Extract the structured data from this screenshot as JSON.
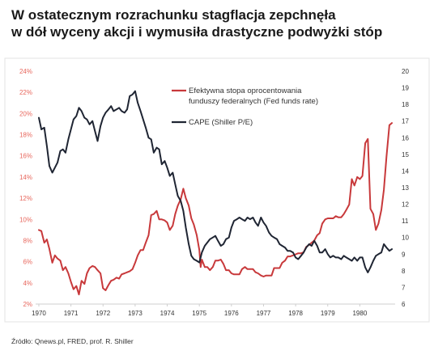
{
  "title_line1": "W ostatecznym rozrachunku stagflacja zepchnęła",
  "title_line2": "w dół wyceny akcji i wymusiła drastyczne podwyżki stóp",
  "source": "Źródło: Qnews.pl, FRED, prof. R. Shiller",
  "chart_data": {
    "type": "line",
    "title": "",
    "xlabel": "",
    "x_ticks": [
      "1970",
      "1971",
      "1972",
      "1973",
      "1974",
      "1975",
      "1976",
      "1977",
      "1978",
      "1979",
      "1980"
    ],
    "y_left": {
      "ticks": [
        "2%",
        "4%",
        "6%",
        "8%",
        "10%",
        "12%",
        "14%",
        "16%",
        "18%",
        "20%",
        "22%",
        "24%"
      ],
      "range": [
        2,
        24
      ],
      "color": "#e8675d"
    },
    "y_right": {
      "ticks": [
        "6",
        "7",
        "8",
        "9",
        "10",
        "11",
        "12",
        "13",
        "14",
        "15",
        "16",
        "17",
        "18",
        "19",
        "20"
      ],
      "range": [
        6,
        20
      ],
      "color": "#333333"
    },
    "x_range": [
      1969.9,
      1981.1
    ],
    "legend_position": "top-right",
    "series": [
      {
        "name": "Efektywna stopa oprocentowania funduszy federalnych (Fed funds rate)",
        "axis": "left",
        "color": "#c8393b",
        "points": [
          [
            1970.0,
            9.0
          ],
          [
            1970.08,
            8.9
          ],
          [
            1970.17,
            7.8
          ],
          [
            1970.25,
            8.1
          ],
          [
            1970.33,
            7.2
          ],
          [
            1970.42,
            5.9
          ],
          [
            1970.5,
            6.6
          ],
          [
            1970.58,
            6.3
          ],
          [
            1970.67,
            6.1
          ],
          [
            1970.75,
            5.2
          ],
          [
            1970.83,
            5.5
          ],
          [
            1970.92,
            4.9
          ],
          [
            1971.0,
            4.1
          ],
          [
            1971.08,
            3.4
          ],
          [
            1971.17,
            3.7
          ],
          [
            1971.25,
            2.9
          ],
          [
            1971.33,
            4.2
          ],
          [
            1971.42,
            3.9
          ],
          [
            1971.5,
            4.9
          ],
          [
            1971.58,
            5.4
          ],
          [
            1971.67,
            5.6
          ],
          [
            1971.75,
            5.5
          ],
          [
            1971.83,
            5.2
          ],
          [
            1971.92,
            4.9
          ],
          [
            1972.0,
            3.5
          ],
          [
            1972.08,
            3.3
          ],
          [
            1972.17,
            3.8
          ],
          [
            1972.25,
            4.2
          ],
          [
            1972.33,
            4.3
          ],
          [
            1972.42,
            4.5
          ],
          [
            1972.5,
            4.4
          ],
          [
            1972.58,
            4.8
          ],
          [
            1972.67,
            4.9
          ],
          [
            1972.75,
            5.0
          ],
          [
            1972.83,
            5.1
          ],
          [
            1972.92,
            5.3
          ],
          [
            1973.0,
            5.9
          ],
          [
            1973.08,
            6.6
          ],
          [
            1973.17,
            7.1
          ],
          [
            1973.25,
            7.1
          ],
          [
            1973.33,
            7.8
          ],
          [
            1973.42,
            8.5
          ],
          [
            1973.5,
            10.4
          ],
          [
            1973.58,
            10.5
          ],
          [
            1973.67,
            10.8
          ],
          [
            1973.75,
            10.0
          ],
          [
            1973.83,
            10.0
          ],
          [
            1973.92,
            9.9
          ],
          [
            1974.0,
            9.7
          ],
          [
            1974.08,
            9.0
          ],
          [
            1974.17,
            9.4
          ],
          [
            1974.25,
            10.5
          ],
          [
            1974.33,
            11.3
          ],
          [
            1974.42,
            11.9
          ],
          [
            1974.5,
            12.9
          ],
          [
            1974.58,
            12.0
          ],
          [
            1974.67,
            11.3
          ],
          [
            1974.75,
            10.1
          ],
          [
            1974.83,
            9.5
          ],
          [
            1974.92,
            8.5
          ],
          [
            1975.0,
            7.1
          ],
          [
            1975.04,
            5.5
          ],
          [
            1975.08,
            6.2
          ],
          [
            1975.17,
            5.5
          ],
          [
            1975.25,
            5.5
          ],
          [
            1975.33,
            5.2
          ],
          [
            1975.42,
            5.5
          ],
          [
            1975.5,
            6.1
          ],
          [
            1975.58,
            6.1
          ],
          [
            1975.67,
            6.2
          ],
          [
            1975.75,
            5.8
          ],
          [
            1975.83,
            5.2
          ],
          [
            1975.92,
            5.2
          ],
          [
            1976.0,
            4.9
          ],
          [
            1976.08,
            4.8
          ],
          [
            1976.17,
            4.8
          ],
          [
            1976.25,
            4.8
          ],
          [
            1976.33,
            5.3
          ],
          [
            1976.42,
            5.5
          ],
          [
            1976.5,
            5.3
          ],
          [
            1976.58,
            5.3
          ],
          [
            1976.67,
            5.3
          ],
          [
            1976.75,
            5.0
          ],
          [
            1976.83,
            4.9
          ],
          [
            1976.92,
            4.7
          ],
          [
            1977.0,
            4.6
          ],
          [
            1977.08,
            4.7
          ],
          [
            1977.17,
            4.7
          ],
          [
            1977.25,
            4.7
          ],
          [
            1977.33,
            5.4
          ],
          [
            1977.42,
            5.4
          ],
          [
            1977.5,
            5.4
          ],
          [
            1977.58,
            5.9
          ],
          [
            1977.67,
            6.1
          ],
          [
            1977.75,
            6.5
          ],
          [
            1977.83,
            6.5
          ],
          [
            1977.92,
            6.6
          ],
          [
            1978.0,
            6.7
          ],
          [
            1978.08,
            6.8
          ],
          [
            1978.17,
            6.8
          ],
          [
            1978.25,
            6.9
          ],
          [
            1978.33,
            7.4
          ],
          [
            1978.42,
            7.6
          ],
          [
            1978.5,
            7.8
          ],
          [
            1978.58,
            8.0
          ],
          [
            1978.67,
            8.5
          ],
          [
            1978.75,
            8.7
          ],
          [
            1978.83,
            9.6
          ],
          [
            1978.92,
            10.0
          ],
          [
            1979.0,
            10.1
          ],
          [
            1979.08,
            10.1
          ],
          [
            1979.17,
            10.1
          ],
          [
            1979.25,
            10.3
          ],
          [
            1979.33,
            10.2
          ],
          [
            1979.42,
            10.2
          ],
          [
            1979.5,
            10.5
          ],
          [
            1979.58,
            10.9
          ],
          [
            1979.67,
            11.4
          ],
          [
            1979.75,
            13.8
          ],
          [
            1979.83,
            13.2
          ],
          [
            1979.92,
            14.0
          ],
          [
            1980.0,
            13.8
          ],
          [
            1980.08,
            14.1
          ],
          [
            1980.17,
            17.2
          ],
          [
            1980.25,
            17.6
          ],
          [
            1980.33,
            11.0
          ],
          [
            1980.42,
            10.5
          ],
          [
            1980.5,
            9.0
          ],
          [
            1980.58,
            9.6
          ],
          [
            1980.67,
            10.9
          ],
          [
            1980.75,
            12.8
          ],
          [
            1980.83,
            15.9
          ],
          [
            1980.92,
            18.9
          ],
          [
            1981.0,
            19.1
          ]
        ]
      },
      {
        "name": "CAPE (Shiller P/E)",
        "axis": "right",
        "color": "#1f2533",
        "points": [
          [
            1970.0,
            17.2
          ],
          [
            1970.08,
            16.5
          ],
          [
            1970.17,
            16.6
          ],
          [
            1970.25,
            15.5
          ],
          [
            1970.33,
            14.3
          ],
          [
            1970.42,
            13.9
          ],
          [
            1970.5,
            14.2
          ],
          [
            1970.58,
            14.5
          ],
          [
            1970.67,
            15.2
          ],
          [
            1970.75,
            15.3
          ],
          [
            1970.83,
            15.1
          ],
          [
            1970.92,
            15.9
          ],
          [
            1971.0,
            16.5
          ],
          [
            1971.08,
            17.1
          ],
          [
            1971.17,
            17.3
          ],
          [
            1971.25,
            17.8
          ],
          [
            1971.33,
            17.6
          ],
          [
            1971.42,
            17.2
          ],
          [
            1971.5,
            17.1
          ],
          [
            1971.58,
            16.8
          ],
          [
            1971.67,
            17.0
          ],
          [
            1971.75,
            16.4
          ],
          [
            1971.83,
            15.8
          ],
          [
            1971.92,
            16.7
          ],
          [
            1972.0,
            17.2
          ],
          [
            1972.08,
            17.5
          ],
          [
            1972.17,
            17.7
          ],
          [
            1972.25,
            17.9
          ],
          [
            1972.33,
            17.6
          ],
          [
            1972.42,
            17.7
          ],
          [
            1972.5,
            17.8
          ],
          [
            1972.58,
            17.6
          ],
          [
            1972.67,
            17.5
          ],
          [
            1972.75,
            17.7
          ],
          [
            1972.83,
            18.5
          ],
          [
            1972.92,
            18.6
          ],
          [
            1973.0,
            18.8
          ],
          [
            1973.08,
            18.1
          ],
          [
            1973.17,
            17.6
          ],
          [
            1973.25,
            17.1
          ],
          [
            1973.33,
            16.6
          ],
          [
            1973.42,
            16.0
          ],
          [
            1973.5,
            15.9
          ],
          [
            1973.58,
            15.1
          ],
          [
            1973.67,
            15.4
          ],
          [
            1973.75,
            15.3
          ],
          [
            1973.83,
            14.4
          ],
          [
            1973.92,
            14.6
          ],
          [
            1974.0,
            14.2
          ],
          [
            1974.08,
            13.7
          ],
          [
            1974.17,
            13.9
          ],
          [
            1974.25,
            13.2
          ],
          [
            1974.33,
            12.5
          ],
          [
            1974.42,
            12.2
          ],
          [
            1974.5,
            11.6
          ],
          [
            1974.58,
            10.6
          ],
          [
            1974.67,
            9.6
          ],
          [
            1974.75,
            8.9
          ],
          [
            1974.83,
            8.7
          ],
          [
            1974.92,
            8.6
          ],
          [
            1975.0,
            8.5
          ],
          [
            1975.08,
            9.1
          ],
          [
            1975.17,
            9.5
          ],
          [
            1975.25,
            9.7
          ],
          [
            1975.33,
            9.9
          ],
          [
            1975.42,
            10.0
          ],
          [
            1975.5,
            10.1
          ],
          [
            1975.58,
            9.8
          ],
          [
            1975.67,
            9.5
          ],
          [
            1975.75,
            9.6
          ],
          [
            1975.83,
            9.9
          ],
          [
            1975.92,
            10.0
          ],
          [
            1976.0,
            10.6
          ],
          [
            1976.08,
            11.0
          ],
          [
            1976.17,
            11.1
          ],
          [
            1976.25,
            11.2
          ],
          [
            1976.33,
            11.1
          ],
          [
            1976.42,
            11.0
          ],
          [
            1976.5,
            11.2
          ],
          [
            1976.58,
            11.1
          ],
          [
            1976.67,
            11.2
          ],
          [
            1976.75,
            10.9
          ],
          [
            1976.83,
            10.7
          ],
          [
            1976.92,
            11.2
          ],
          [
            1977.0,
            10.9
          ],
          [
            1977.08,
            10.7
          ],
          [
            1977.17,
            10.3
          ],
          [
            1977.25,
            10.1
          ],
          [
            1977.33,
            10.0
          ],
          [
            1977.42,
            9.9
          ],
          [
            1977.5,
            9.6
          ],
          [
            1977.58,
            9.5
          ],
          [
            1977.67,
            9.4
          ],
          [
            1977.75,
            9.2
          ],
          [
            1977.83,
            9.2
          ],
          [
            1977.92,
            9.1
          ],
          [
            1978.0,
            8.8
          ],
          [
            1978.08,
            8.7
          ],
          [
            1978.17,
            8.9
          ],
          [
            1978.25,
            9.1
          ],
          [
            1978.33,
            9.4
          ],
          [
            1978.42,
            9.6
          ],
          [
            1978.5,
            9.5
          ],
          [
            1978.58,
            9.8
          ],
          [
            1978.67,
            9.5
          ],
          [
            1978.75,
            9.1
          ],
          [
            1978.83,
            9.1
          ],
          [
            1978.92,
            9.3
          ],
          [
            1979.0,
            9.0
          ],
          [
            1979.08,
            8.8
          ],
          [
            1979.17,
            8.9
          ],
          [
            1979.25,
            8.8
          ],
          [
            1979.33,
            8.8
          ],
          [
            1979.42,
            8.7
          ],
          [
            1979.5,
            8.9
          ],
          [
            1979.58,
            8.8
          ],
          [
            1979.67,
            8.7
          ],
          [
            1979.75,
            8.6
          ],
          [
            1979.83,
            8.8
          ],
          [
            1979.92,
            8.6
          ],
          [
            1980.0,
            8.8
          ],
          [
            1980.08,
            8.8
          ],
          [
            1980.17,
            8.2
          ],
          [
            1980.25,
            7.9
          ],
          [
            1980.33,
            8.2
          ],
          [
            1980.42,
            8.6
          ],
          [
            1980.5,
            8.9
          ],
          [
            1980.58,
            9.0
          ],
          [
            1980.67,
            9.1
          ],
          [
            1980.75,
            9.6
          ],
          [
            1980.83,
            9.4
          ],
          [
            1980.92,
            9.2
          ],
          [
            1981.0,
            9.3
          ]
        ]
      }
    ]
  }
}
